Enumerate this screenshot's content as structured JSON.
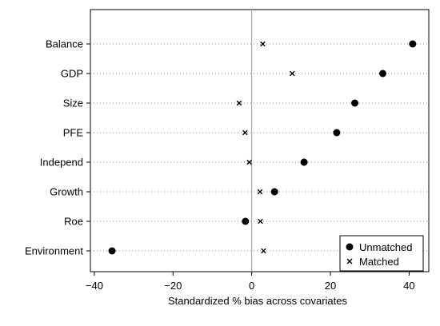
{
  "chart_data": {
    "type": "scatter",
    "title": "",
    "xlabel": "Standardized % bias across covariates",
    "ylabel": "",
    "xlim": [
      -41,
      45
    ],
    "xticks": [
      -40,
      -20,
      0,
      20,
      40
    ],
    "xtick_labels": [
      "−40",
      "−20",
      "0",
      "20",
      "40"
    ],
    "categories": [
      "Balance",
      "GDP",
      "Size",
      "PFE",
      "Independ",
      "Growth",
      "Roe",
      "Environment"
    ],
    "series": [
      {
        "name": "Unmatched",
        "marker": "circle",
        "values": [
          40.9,
          33.3,
          26.2,
          21.6,
          13.3,
          5.8,
          -1.6,
          -35.5
        ]
      },
      {
        "name": "Matched",
        "marker": "x",
        "values": [
          2.8,
          10.3,
          -3.2,
          -1.7,
          -0.6,
          2.1,
          2.2,
          3.0
        ]
      }
    ],
    "reference_line_x": 0,
    "grid": "dotted horizontal",
    "legend_position": "bottom-right",
    "colors": {
      "unmatched": "#000000",
      "matched": "#000000",
      "gridline": "#888888",
      "refline": "#999999"
    }
  }
}
